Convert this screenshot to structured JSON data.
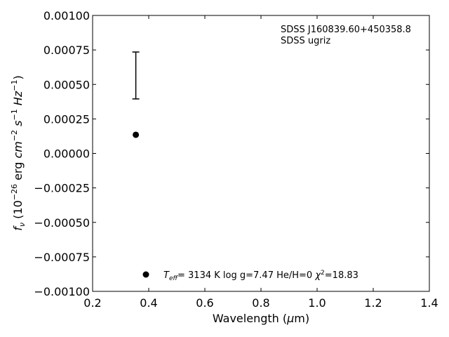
{
  "chart_data": {
    "type": "scatter",
    "xlabel": "Wavelength (μm)",
    "ylabel": "f_ν (10^-26 erg cm^-2 s^-1 Hz^-1)",
    "xlim": [
      0.2,
      1.4
    ],
    "ylim": [
      -0.001,
      0.001
    ],
    "x_ticks": [
      0.2,
      0.4,
      0.6,
      0.8,
      1.0,
      1.2,
      1.4
    ],
    "x_tick_labels": [
      "0.2",
      "0.4",
      "0.6",
      "0.8",
      "1.0",
      "1.2",
      "1.4"
    ],
    "y_ticks": [
      -0.001,
      -0.00075,
      -0.0005,
      -0.00025,
      0.0,
      0.00025,
      0.0005,
      0.00075,
      0.001
    ],
    "y_tick_labels": [
      "−0.00100",
      "−0.00075",
      "−0.00050",
      "−0.00025",
      "0.00000",
      "0.00025",
      "0.00050",
      "0.00075",
      "0.00100"
    ],
    "grid": false,
    "errorbars": [
      {
        "x": 0.354,
        "y": 0.000565,
        "ylow": 0.000395,
        "yhigh": 0.000735
      }
    ],
    "points": [
      {
        "x": 0.354,
        "y": 0.000135
      }
    ],
    "annotations": {
      "object": "SDSS J160839.60+450358.8",
      "survey": "SDSS ugriz"
    },
    "legend": {
      "position": "bottom",
      "teff_value": "3134 K",
      "logg": "log g=7.47",
      "heh": "He/H=0",
      "chi2_value": "=18.83"
    }
  }
}
